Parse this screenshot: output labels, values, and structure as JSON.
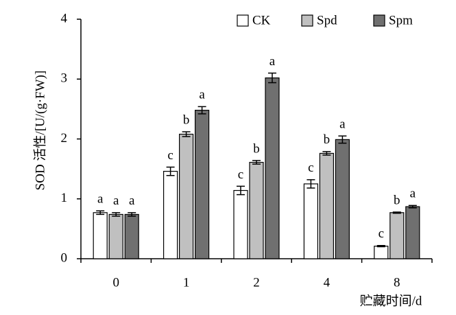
{
  "chart_data": {
    "type": "bar",
    "y_label": "SOD 活性/[U/(g·FW)]",
    "x_label": "贮藏时间/d",
    "categories": [
      "0",
      "1",
      "2",
      "4",
      "8"
    ],
    "series": [
      {
        "name": "CK",
        "color": "#ffffff",
        "values": [
          0.77,
          1.46,
          1.14,
          1.25,
          0.21
        ],
        "errors": [
          0.03,
          0.07,
          0.07,
          0.07,
          0.01
        ],
        "letters": [
          "a",
          "c",
          "c",
          "c",
          "c"
        ]
      },
      {
        "name": "Spd",
        "color": "#c0c0c0",
        "values": [
          0.74,
          2.08,
          1.61,
          1.76,
          0.77
        ],
        "errors": [
          0.03,
          0.04,
          0.03,
          0.03,
          0.01
        ],
        "letters": [
          "a",
          "b",
          "b",
          "b",
          "b"
        ]
      },
      {
        "name": "Spm",
        "color": "#707070",
        "values": [
          0.74,
          2.48,
          3.02,
          1.99,
          0.87
        ],
        "errors": [
          0.03,
          0.06,
          0.08,
          0.06,
          0.02
        ],
        "letters": [
          "a",
          "a",
          "a",
          "a",
          "a"
        ]
      }
    ],
    "ylim": [
      0,
      4
    ],
    "yticks": [
      0,
      1,
      2,
      3,
      4
    ],
    "grid": false
  }
}
